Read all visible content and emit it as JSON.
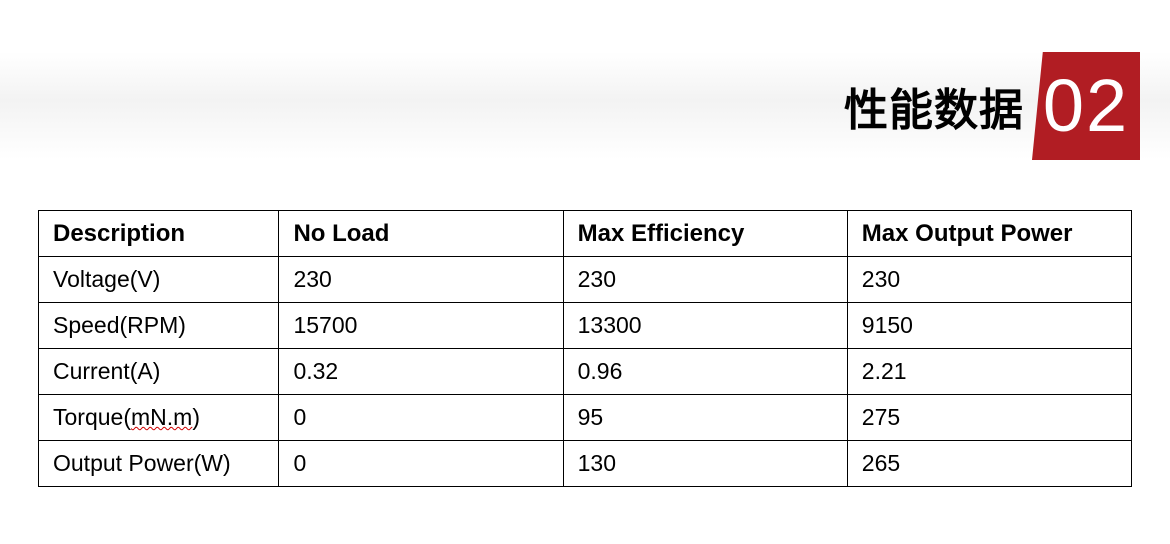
{
  "header": {
    "title": "性能数据",
    "badge_number": "02",
    "badge_bg": "#b11d23",
    "badge_fg": "#ffffff"
  },
  "table": {
    "columns": [
      "Description",
      "No Load",
      "Max Efficiency",
      "Max Output Power"
    ],
    "col_widths_pct": [
      22,
      26,
      26,
      26
    ],
    "header_fontsize": 24,
    "cell_fontsize": 23,
    "border_color": "#000000",
    "rows": [
      {
        "label": "Voltage(V)",
        "c1": "230",
        "c2": "230",
        "c3": "230"
      },
      {
        "label": "Speed(RPM)",
        "c1": "15700",
        "c2": "13300",
        "c3": "9150"
      },
      {
        "label": "Current(A)",
        "c1": "0.32",
        "c2": "0.96",
        "c3": "2.21"
      },
      {
        "label": "Torque(mN.m)",
        "c1": "0",
        "c2": "95",
        "c3": "275",
        "label_parts": [
          "Torque(",
          "mN.m",
          ")"
        ],
        "underline_middle": true
      },
      {
        "label": "Output Power(W)",
        "c1": "0",
        "c2": "130",
        "c3": "265"
      }
    ]
  }
}
